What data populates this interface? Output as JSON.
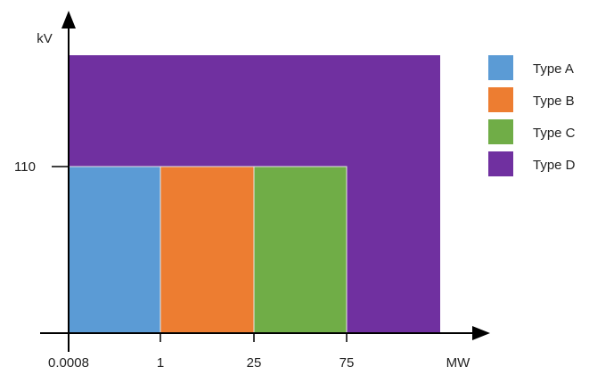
{
  "chart_data": {
    "type": "area",
    "xlabel": "MW",
    "ylabel": "kV",
    "x_ticks": [
      "0.0008",
      "1",
      "25",
      "75"
    ],
    "y_ticks": [
      "110"
    ],
    "regions": [
      {
        "name": "Type A",
        "x_from": "0.0008",
        "x_to": "1",
        "y_from": 0,
        "y_to": 110,
        "color": "#5b9bd5"
      },
      {
        "name": "Type B",
        "x_from": "1",
        "x_to": "25",
        "y_from": 0,
        "y_to": 110,
        "color": "#ed7d31"
      },
      {
        "name": "Type C",
        "x_from": "25",
        "x_to": "75",
        "y_from": 0,
        "y_to": 110,
        "color": "#70ad47"
      },
      {
        "name": "Type D",
        "x_from": "0.0008",
        "x_to": "",
        "y_from": 0,
        "y_to": "",
        "color": "#7030a0"
      }
    ],
    "legend": [
      {
        "label": "Type A",
        "color": "#5b9bd5"
      },
      {
        "label": "Type B",
        "color": "#ed7d31"
      },
      {
        "label": "Type C",
        "color": "#70ad47"
      },
      {
        "label": "Type D",
        "color": "#7030a0"
      }
    ],
    "legend_position": "right",
    "grid": false
  }
}
